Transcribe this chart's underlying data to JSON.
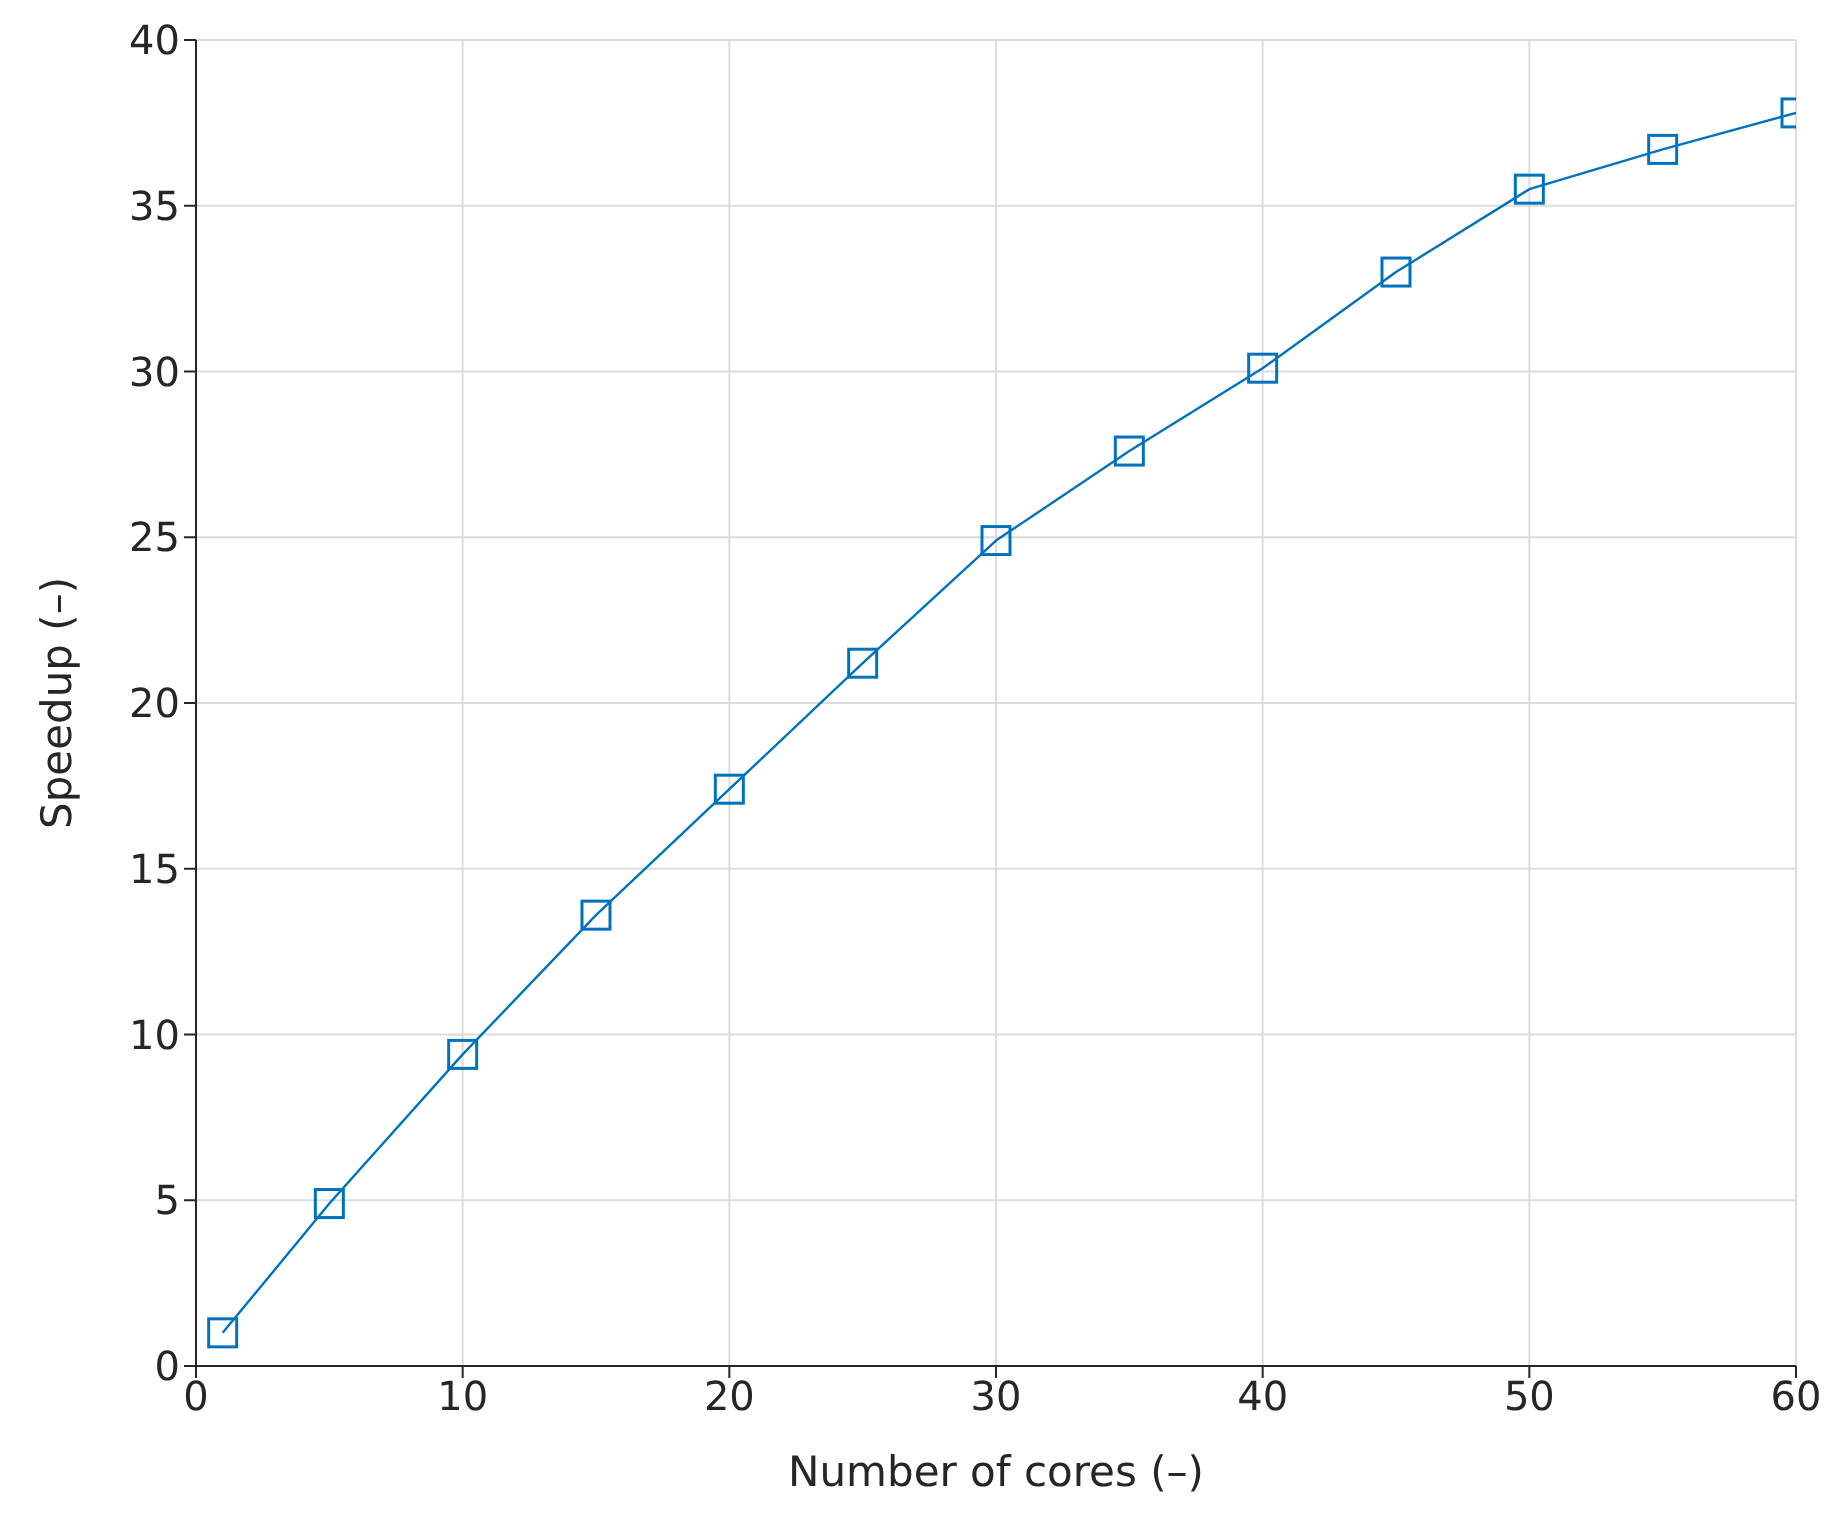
{
  "chart_data": {
    "type": "line",
    "xlabel": "Number of cores (–)",
    "ylabel": "Speedup (–)",
    "x": [
      1,
      5,
      10,
      15,
      20,
      25,
      30,
      35,
      40,
      45,
      50,
      55,
      60
    ],
    "series": [
      {
        "color": "#0072bd",
        "values": [
          1,
          4.9,
          9.4,
          13.6,
          17.4,
          21.2,
          24.9,
          27.6,
          30.1,
          33.0,
          35.5,
          36.7,
          37.8
        ]
      }
    ],
    "xlim": [
      0,
      60
    ],
    "xticks": [
      0,
      10,
      20,
      30,
      40,
      50,
      60
    ],
    "ylim": [
      0,
      40
    ],
    "yticks": [
      0,
      5,
      10,
      15,
      20,
      25,
      30,
      35,
      40
    ],
    "grid": true,
    "marker": "square",
    "line_style": "solid",
    "legend": false
  }
}
